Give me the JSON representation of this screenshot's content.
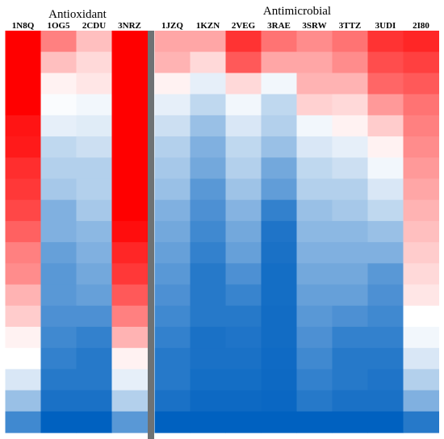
{
  "chart_data": {
    "type": "heatmap",
    "groups": [
      {
        "name": "Antioxidant",
        "columns": [
          "1N8Q",
          "1OG5",
          "2CDU",
          "3NRZ"
        ]
      },
      {
        "name": "Antimicrobial",
        "columns": [
          "1JZQ",
          "1KZN",
          "2VEG",
          "3RAE",
          "3SRW",
          "3TTZ",
          "3UDI",
          "2I80"
        ]
      }
    ],
    "scale": {
      "min": -1,
      "max": 1,
      "low_color": "#0061C0",
      "mid_color": "#FFFFFF",
      "high_color": "#FF0000",
      "separator_color": "#6E7274"
    },
    "rows": 19,
    "values": {
      "1N8Q": [
        1.0,
        1.0,
        1.0,
        1.0,
        0.92,
        0.9,
        0.82,
        0.78,
        0.72,
        0.62,
        0.5,
        0.45,
        0.3,
        0.2,
        0.05,
        0.0,
        -0.15,
        -0.4,
        -0.75
      ],
      "1OG5": [
        0.5,
        0.25,
        0.05,
        -0.02,
        -0.1,
        -0.25,
        -0.3,
        -0.35,
        -0.5,
        -0.5,
        -0.6,
        -0.65,
        -0.65,
        -0.7,
        -0.75,
        -0.8,
        -0.85,
        -0.9,
        -1.0
      ],
      "2CDU": [
        0.25,
        0.15,
        0.1,
        -0.05,
        -0.12,
        -0.2,
        -0.3,
        -0.3,
        -0.35,
        -0.45,
        -0.5,
        -0.55,
        -0.6,
        -0.7,
        -0.8,
        -0.85,
        -0.85,
        -0.9,
        -1.0
      ],
      "3NRZ": [
        1.0,
        1.0,
        1.0,
        1.0,
        1.0,
        1.0,
        1.0,
        1.0,
        1.0,
        0.95,
        0.85,
        0.78,
        0.65,
        0.5,
        0.3,
        0.05,
        -0.1,
        -0.3,
        -0.65
      ],
      "1JZQ": [
        0.35,
        0.3,
        0.05,
        -0.1,
        -0.2,
        -0.3,
        -0.35,
        -0.4,
        -0.5,
        -0.55,
        -0.6,
        -0.65,
        -0.7,
        -0.75,
        -0.8,
        -0.85,
        -0.85,
        -0.9,
        -1.0
      ],
      "1KZN": [
        0.35,
        0.15,
        -0.1,
        -0.25,
        -0.4,
        -0.5,
        -0.55,
        -0.65,
        -0.7,
        -0.75,
        -0.8,
        -0.85,
        -0.85,
        -0.85,
        -0.9,
        -0.9,
        -0.92,
        -0.95,
        -1.0
      ],
      "2VEG": [
        0.8,
        0.65,
        0.15,
        -0.05,
        -0.15,
        -0.25,
        -0.3,
        -0.38,
        -0.48,
        -0.55,
        -0.6,
        -0.7,
        -0.78,
        -0.85,
        -0.88,
        -0.9,
        -0.92,
        -0.95,
        -1.0
      ],
      "3RAE": [
        0.55,
        0.35,
        -0.05,
        -0.25,
        -0.3,
        -0.4,
        -0.55,
        -0.62,
        -0.8,
        -0.88,
        -0.9,
        -0.92,
        -0.92,
        -0.93,
        -0.93,
        -0.94,
        -0.95,
        -0.96,
        -1.0
      ],
      "3SRW": [
        0.45,
        0.35,
        0.3,
        0.18,
        -0.05,
        -0.15,
        -0.25,
        -0.3,
        -0.4,
        -0.45,
        -0.5,
        -0.55,
        -0.6,
        -0.65,
        -0.7,
        -0.75,
        -0.8,
        -0.85,
        -1.0
      ],
      "3TTZ": [
        0.55,
        0.45,
        0.3,
        0.15,
        0.05,
        -0.1,
        -0.2,
        -0.3,
        -0.35,
        -0.45,
        -0.5,
        -0.55,
        -0.6,
        -0.7,
        -0.8,
        -0.85,
        -0.85,
        -0.9,
        -1.0
      ],
      "3UDI": [
        0.8,
        0.7,
        0.6,
        0.4,
        0.2,
        0.05,
        -0.05,
        -0.15,
        -0.25,
        -0.4,
        -0.5,
        -0.65,
        -0.7,
        -0.75,
        -0.8,
        -0.85,
        -0.88,
        -0.9,
        -1.0
      ],
      "2I80": [
        0.85,
        0.75,
        0.65,
        0.55,
        0.5,
        0.45,
        0.4,
        0.35,
        0.3,
        0.25,
        0.2,
        0.15,
        0.1,
        0.0,
        -0.05,
        -0.15,
        -0.3,
        -0.5,
        -0.85
      ]
    }
  }
}
